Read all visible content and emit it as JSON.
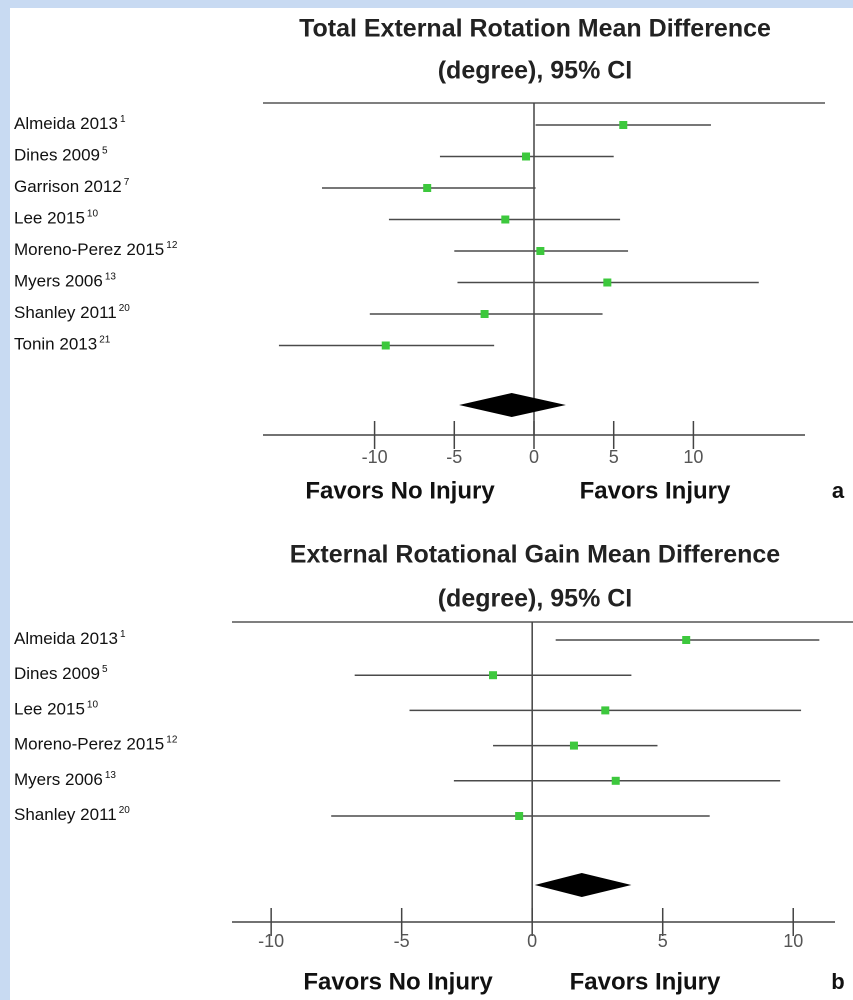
{
  "chart_data": [
    {
      "type": "forest",
      "title": [
        "Total External Rotation Mean Difference",
        "(degree), 95% CI"
      ],
      "categories": [
        "Almeida 2013",
        "Dines 2009",
        "Garrison 2012",
        "Lee 2015",
        "Moreno-Perez 2015",
        "Myers 2006",
        "Shanley 2011",
        "Tonin 2013"
      ],
      "refs": [
        "1",
        "5",
        "7",
        "10",
        "12",
        "13",
        "20",
        "21"
      ],
      "values": [
        5.6,
        -0.5,
        -6.7,
        -1.8,
        0.4,
        4.6,
        -3.1,
        -9.3
      ],
      "lower": [
        0.1,
        -5.9,
        -13.3,
        -9.1,
        -5.0,
        -4.8,
        -10.3,
        -16.0
      ],
      "upper": [
        11.1,
        5.0,
        0.1,
        5.4,
        5.9,
        14.1,
        4.3,
        -2.5
      ],
      "pooled": {
        "value": -1.4,
        "lower": -4.7,
        "upper": 2.0
      },
      "xlim": [
        -17,
        17
      ],
      "xticks": [
        -10,
        -5,
        0,
        5,
        10
      ],
      "xlabels": [
        "Favors No Injury",
        "Favors Injury"
      ],
      "panel": "a",
      "point_color": "#3dc83d",
      "line_color": "#4a4a4a"
    },
    {
      "type": "forest",
      "title": [
        "External Rotational Gain Mean Difference",
        "(degree), 95% CI"
      ],
      "categories": [
        "Almeida 2013",
        "Dines 2009",
        "Lee 2015",
        "Moreno-Perez 2015",
        "Myers 2006",
        "Shanley 2011"
      ],
      "refs": [
        "1",
        "5",
        "10",
        "12",
        "13",
        "20"
      ],
      "values": [
        5.9,
        -1.5,
        2.8,
        1.6,
        3.2,
        -0.5
      ],
      "lower": [
        0.9,
        -6.8,
        -4.7,
        -1.5,
        -3.0,
        -7.7
      ],
      "upper": [
        11.0,
        3.8,
        10.3,
        4.8,
        9.5,
        6.8
      ],
      "pooled": {
        "value": 1.9,
        "lower": 0.1,
        "upper": 3.8
      },
      "xlim": [
        -11.5,
        11.6
      ],
      "xticks": [
        -10,
        -5,
        0,
        5,
        10
      ],
      "xlabels": [
        "Favors No Injury",
        "Favors Injury"
      ],
      "panel": "b",
      "point_color": "#3dc83d",
      "line_color": "#4a4a4a"
    }
  ]
}
